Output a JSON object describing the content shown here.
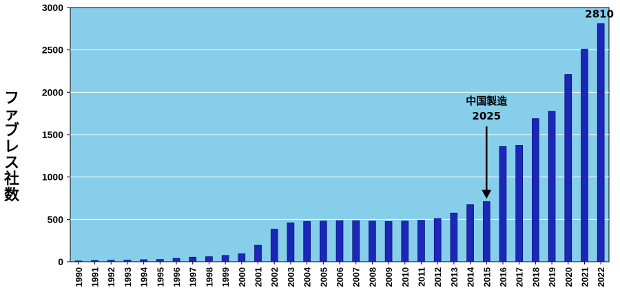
{
  "chart_data": {
    "type": "bar",
    "ylabel": "ファブレス社数",
    "ylim": [
      0,
      3000
    ],
    "yticks": [
      0,
      500,
      1000,
      1500,
      2000,
      2500,
      3000
    ],
    "grid": true,
    "colors": {
      "plot_background": "#87ceeb",
      "bar": "#1a27b8",
      "bar_edge": "#000066",
      "grid": "#ffffff"
    },
    "categories": [
      "1990",
      "1991",
      "1992",
      "1993",
      "1994",
      "1995",
      "1996",
      "1997",
      "1998",
      "1999",
      "2000",
      "2001",
      "2002",
      "2003",
      "2004",
      "2005",
      "2006",
      "2007",
      "2008",
      "2009",
      "2010",
      "2011",
      "2012",
      "2013",
      "2014",
      "2015",
      "2016",
      "2017",
      "2018",
      "2019",
      "2020",
      "2021",
      "2022"
    ],
    "values": [
      10,
      15,
      18,
      20,
      25,
      28,
      40,
      55,
      60,
      75,
      95,
      195,
      385,
      460,
      475,
      480,
      485,
      485,
      480,
      475,
      480,
      490,
      510,
      575,
      675,
      710,
      1360,
      1375,
      1690,
      1775,
      2210,
      2510,
      2810
    ],
    "annotations": [
      {
        "category": "2015",
        "lines": [
          "中国製造",
          "2025"
        ],
        "arrow": true
      },
      {
        "category": "2022",
        "text": "2810"
      }
    ]
  }
}
